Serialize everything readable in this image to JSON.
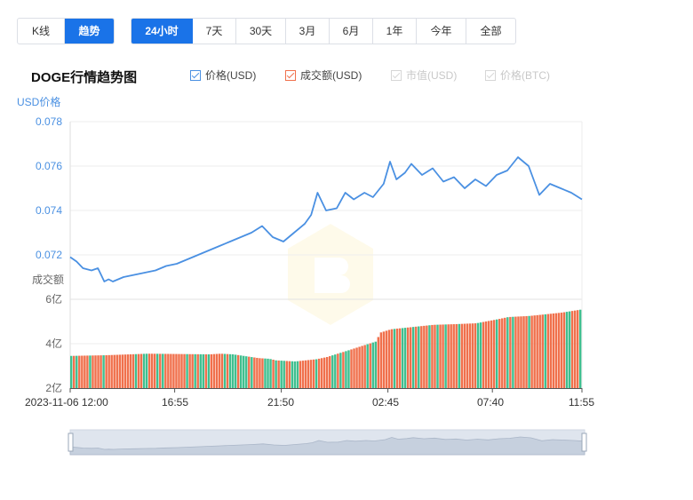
{
  "view_tabs": [
    "K线",
    "趋势"
  ],
  "view_active": 1,
  "range_tabs": [
    "24小时",
    "7天",
    "30天",
    "3月",
    "6月",
    "1年",
    "今年",
    "全部"
  ],
  "range_active": 0,
  "chart_title": "DOGE行情趋势图",
  "legend": [
    {
      "label": "价格(USD)",
      "on": true,
      "color": "#4a90e2"
    },
    {
      "label": "成交额(USD)",
      "on": true,
      "color": "#f0704c"
    },
    {
      "label": "市值(USD)",
      "on": false,
      "color": "#cccccc"
    },
    {
      "label": "价格(BTC)",
      "on": false,
      "color": "#cccccc"
    }
  ],
  "colors": {
    "price_line": "#4a90e2",
    "volume_up": "#f0704c",
    "volume_down": "#3fbf8f",
    "accent": "#1a73e8",
    "axis_text": "#4a90e2"
  },
  "chart_data": {
    "type": "line",
    "price_axis_label": "USD价格",
    "volume_axis_label": "成交额",
    "price_ylim": [
      0.07,
      0.078
    ],
    "price_ticks": [
      "0.078",
      "0.076",
      "0.074",
      "0.072"
    ],
    "volume_ylim": [
      2,
      6
    ],
    "volume_ticks": [
      "6亿",
      "4亿",
      "2亿"
    ],
    "x_tick_labels": [
      "2023-11-06 12:00",
      "16:55",
      "21:50",
      "02:45",
      "07:40",
      "11:55"
    ],
    "x_range_hours": [
      0,
      24
    ],
    "price_series": {
      "name": "价格(USD)",
      "x": [
        0,
        0.3,
        0.6,
        1.0,
        1.3,
        1.6,
        1.8,
        2.0,
        2.5,
        3.0,
        3.5,
        4.0,
        4.5,
        5.0,
        5.5,
        6.0,
        6.5,
        7.0,
        7.5,
        8.0,
        8.5,
        9.0,
        9.5,
        10.0,
        10.5,
        11.0,
        11.3,
        11.6,
        12.0,
        12.5,
        12.9,
        13.3,
        13.8,
        14.2,
        14.7,
        15.0,
        15.3,
        15.7,
        16.0,
        16.5,
        17.0,
        17.5,
        18.0,
        18.5,
        19.0,
        19.5,
        20.0,
        20.5,
        21.0,
        21.5,
        22.0,
        22.5,
        23.0,
        23.5,
        24.0
      ],
      "y": [
        0.0719,
        0.0717,
        0.0714,
        0.0713,
        0.0714,
        0.0708,
        0.0709,
        0.0708,
        0.071,
        0.0711,
        0.0712,
        0.0713,
        0.0715,
        0.0716,
        0.0718,
        0.072,
        0.0722,
        0.0724,
        0.0726,
        0.0728,
        0.073,
        0.0733,
        0.0728,
        0.0726,
        0.073,
        0.0734,
        0.0738,
        0.0748,
        0.074,
        0.0741,
        0.0748,
        0.0745,
        0.0748,
        0.0746,
        0.0752,
        0.0762,
        0.0754,
        0.0757,
        0.0761,
        0.0756,
        0.0759,
        0.0753,
        0.0755,
        0.075,
        0.0754,
        0.0751,
        0.0756,
        0.0758,
        0.0764,
        0.076,
        0.0747,
        0.0752,
        0.075,
        0.0748,
        0.0745
      ],
      "color": "#4a90e2"
    },
    "volume_series": {
      "name": "成交额(USD)",
      "x_start": 0,
      "x_end": 24,
      "count": 190,
      "y_points": [
        [
          0,
          3.45
        ],
        [
          1.6,
          3.48
        ],
        [
          3.6,
          3.55
        ],
        [
          6.5,
          3.52
        ],
        [
          7.0,
          3.55
        ],
        [
          7.6,
          3.52
        ],
        [
          8.3,
          3.42
        ],
        [
          8.8,
          3.35
        ],
        [
          9.3,
          3.32
        ],
        [
          9.6,
          3.25
        ],
        [
          10.5,
          3.2
        ],
        [
          11.5,
          3.3
        ],
        [
          12.0,
          3.4
        ],
        [
          12.5,
          3.55
        ],
        [
          13.0,
          3.7
        ],
        [
          13.8,
          3.95
        ],
        [
          14.3,
          4.1
        ],
        [
          14.5,
          4.5
        ],
        [
          15.0,
          4.65
        ],
        [
          16.0,
          4.75
        ],
        [
          17.0,
          4.85
        ],
        [
          18.0,
          4.88
        ],
        [
          19.0,
          4.92
        ],
        [
          20.0,
          5.1
        ],
        [
          20.5,
          5.2
        ],
        [
          21.5,
          5.25
        ],
        [
          22.0,
          5.3
        ],
        [
          23.0,
          5.4
        ],
        [
          24.0,
          5.55
        ]
      ]
    },
    "grid": true,
    "legend_position": "top"
  }
}
